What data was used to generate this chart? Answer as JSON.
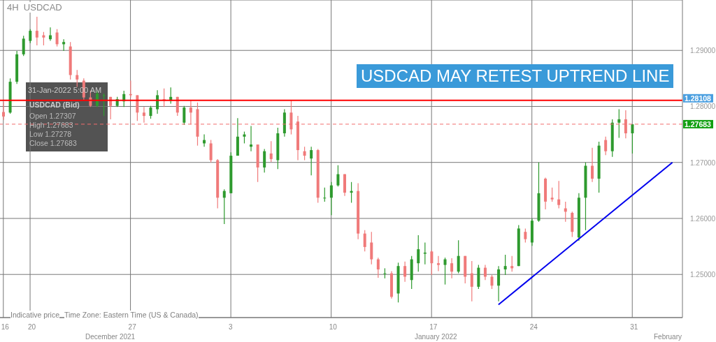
{
  "chart_data": {
    "type": "candlestick",
    "title": "4H  USDCAD",
    "categories": [
      "16",
      null,
      null,
      null,
      "20",
      null,
      null,
      null,
      null,
      null,
      null,
      null,
      null,
      null,
      null,
      null,
      null,
      null,
      null,
      "27",
      null,
      null,
      null,
      null,
      null,
      null,
      null,
      null,
      null,
      null,
      null,
      null,
      null,
      null,
      "3",
      null,
      null,
      null,
      null,
      null,
      null,
      null,
      null,
      null,
      null,
      null,
      null,
      null,
      null,
      "10",
      null,
      null,
      null,
      null,
      null,
      null,
      null,
      null,
      null,
      null,
      null,
      null,
      null,
      null,
      "17",
      null,
      null,
      null,
      null,
      null,
      null,
      null,
      null,
      null,
      null,
      null,
      null,
      null,
      null,
      "24",
      null,
      null,
      null,
      null,
      null,
      null,
      null,
      null,
      null,
      null,
      null,
      null,
      null,
      null,
      "31",
      null,
      null,
      null,
      null,
      null,
      null,
      null
    ],
    "ohlc": [
      [
        1.279,
        1.2808,
        1.2776,
        1.2782
      ],
      [
        1.2789,
        1.285,
        1.2787,
        1.2844
      ],
      [
        1.2844,
        1.2899,
        1.284,
        1.2893
      ],
      [
        1.2893,
        1.2926,
        1.289,
        1.2921
      ],
      [
        1.2917,
        1.2938,
        1.2913,
        1.2935
      ],
      [
        1.2935,
        1.296,
        1.2909,
        1.2923
      ],
      [
        1.2927,
        1.2933,
        1.2909,
        1.2923
      ],
      [
        1.292,
        1.2941,
        1.2917,
        1.2927
      ],
      [
        1.2932,
        1.2938,
        1.2907,
        1.2911
      ],
      [
        1.2911,
        1.292,
        1.2899,
        1.2915
      ],
      [
        1.2907,
        1.2915,
        1.2848,
        1.2856
      ],
      [
        1.2856,
        1.2865,
        1.2835,
        1.2848
      ],
      [
        1.2846,
        1.285,
        1.2811,
        1.2816
      ],
      [
        1.2816,
        1.2828,
        1.2799,
        1.2801
      ],
      [
        1.2801,
        1.2828,
        1.2799,
        1.2823
      ],
      [
        1.282,
        1.2823,
        1.2783,
        1.282
      ],
      [
        1.2817,
        1.2817,
        1.2777,
        1.2801
      ],
      [
        1.2801,
        1.2817,
        1.2799,
        1.2813
      ],
      [
        1.2809,
        1.2828,
        1.2799,
        1.2822
      ],
      [
        1.2822,
        1.2846,
        1.2816,
        1.282
      ],
      [
        1.282,
        1.282,
        1.2774,
        1.2789
      ],
      [
        1.2789,
        1.2799,
        1.2771,
        1.2783
      ],
      [
        1.2783,
        1.2801,
        1.2778,
        1.2798
      ],
      [
        1.2795,
        1.2829,
        1.2787,
        1.282
      ],
      [
        1.2813,
        1.2832,
        1.2799,
        1.281
      ],
      [
        1.281,
        1.2834,
        1.2805,
        1.2817
      ],
      [
        1.2817,
        1.2817,
        1.2783,
        1.2789
      ],
      [
        1.2771,
        1.2801,
        1.2767,
        1.2798
      ],
      [
        1.2798,
        1.2811,
        1.2768,
        1.2789
      ],
      [
        1.2795,
        1.2807,
        1.273,
        1.2746
      ],
      [
        1.2734,
        1.275,
        1.2728,
        1.274
      ],
      [
        1.2734,
        1.274,
        1.27,
        1.2704
      ],
      [
        1.2704,
        1.2706,
        1.2618,
        1.2637
      ],
      [
        1.2637,
        1.2652,
        1.259,
        1.2649
      ],
      [
        1.2645,
        1.2718,
        1.2645,
        1.2712
      ],
      [
        1.2712,
        1.2779,
        1.2712,
        1.2746
      ],
      [
        1.2746,
        1.2755,
        1.2734,
        1.275
      ],
      [
        1.2728,
        1.2765,
        1.272,
        1.2732
      ],
      [
        1.2732,
        1.2732,
        1.2665,
        1.2691
      ],
      [
        1.2691,
        1.2724,
        1.2682,
        1.272
      ],
      [
        1.2716,
        1.2738,
        1.2701,
        1.2706
      ],
      [
        1.2704,
        1.2762,
        1.2688,
        1.2752
      ],
      [
        1.2752,
        1.2795,
        1.2746,
        1.2789
      ],
      [
        1.2789,
        1.2811,
        1.275,
        1.2759
      ],
      [
        1.2773,
        1.2783,
        1.2704,
        1.2722
      ],
      [
        1.272,
        1.2728,
        1.2704,
        1.2712
      ],
      [
        1.2707,
        1.2728,
        1.2677,
        1.2722
      ],
      [
        1.2722,
        1.2724,
        1.2628,
        1.2637
      ],
      [
        1.2637,
        1.2655,
        1.263,
        1.2637
      ],
      [
        1.2637,
        1.2665,
        1.2606,
        1.2659
      ],
      [
        1.2659,
        1.2695,
        1.2657,
        1.2679
      ],
      [
        1.2679,
        1.2679,
        1.264,
        1.2646
      ],
      [
        1.2646,
        1.2665,
        1.2628,
        1.2649
      ],
      [
        1.2649,
        1.2663,
        1.2563,
        1.2573
      ],
      [
        1.2573,
        1.2579,
        1.2541,
        1.2549
      ],
      [
        1.2557,
        1.2576,
        1.2518,
        1.2527
      ],
      [
        1.2527,
        1.253,
        1.2494,
        1.2509
      ],
      [
        1.2502,
        1.2511,
        1.2493,
        1.2502
      ],
      [
        1.2502,
        1.2506,
        1.2457,
        1.246
      ],
      [
        1.2466,
        1.2521,
        1.245,
        1.2515
      ],
      [
        1.2515,
        1.2523,
        1.2487,
        1.2496
      ],
      [
        1.249,
        1.2533,
        1.2474,
        1.2527
      ],
      [
        1.252,
        1.257,
        1.2505,
        1.2545
      ],
      [
        1.2537,
        1.2557,
        1.2518,
        1.2539
      ],
      [
        1.2541,
        1.2543,
        1.2499,
        1.252
      ],
      [
        1.252,
        1.2533,
        1.2506,
        1.2517
      ],
      [
        1.2517,
        1.253,
        1.2482,
        1.2527
      ],
      [
        1.252,
        1.2529,
        1.2493,
        1.2505
      ],
      [
        1.2505,
        1.2561,
        1.2502,
        1.2533
      ],
      [
        1.2533,
        1.2533,
        1.2484,
        1.2496
      ],
      [
        1.2502,
        1.2524,
        1.2452,
        1.2478
      ],
      [
        1.2478,
        1.2517,
        1.2474,
        1.2512
      ],
      [
        1.2512,
        1.2517,
        1.249,
        1.2496
      ],
      [
        1.2496,
        1.2499,
        1.2474,
        1.248
      ],
      [
        1.248,
        1.2515,
        1.2452,
        1.2509
      ],
      [
        1.2509,
        1.2535,
        1.2499,
        1.2515
      ],
      [
        1.2515,
        1.2533,
        1.2505,
        1.2511
      ],
      [
        1.2515,
        1.2588,
        1.2515,
        1.2582
      ],
      [
        1.2576,
        1.2582,
        1.2557,
        1.2563
      ],
      [
        1.2557,
        1.26,
        1.2551,
        1.2596
      ],
      [
        1.2596,
        1.27,
        1.2594,
        1.2645
      ],
      [
        1.2671,
        1.2673,
        1.2616,
        1.263
      ],
      [
        1.2637,
        1.2655,
        1.263,
        1.2634
      ],
      [
        1.2634,
        1.2667,
        1.2618,
        1.2624
      ],
      [
        1.2618,
        1.263,
        1.2594,
        1.2612
      ],
      [
        1.261,
        1.2612,
        1.2567,
        1.2576
      ],
      [
        1.2566,
        1.2645,
        1.256,
        1.2637
      ],
      [
        1.2637,
        1.27,
        1.2579,
        1.2694
      ],
      [
        1.2694,
        1.2726,
        1.2665,
        1.2671
      ],
      [
        1.2671,
        1.2737,
        1.2646,
        1.273
      ],
      [
        1.274,
        1.2746,
        1.2713,
        1.272
      ],
      [
        1.272,
        1.2777,
        1.271,
        1.2771
      ],
      [
        1.2771,
        1.2795,
        1.2744,
        1.2777
      ],
      [
        1.2777,
        1.2793,
        1.2743,
        1.2752
      ],
      [
        1.2752,
        1.2768,
        1.2716,
        1.2768
      ],
      null,
      null,
      null,
      null,
      null,
      null,
      null
    ],
    "series": [
      {
        "type": "line",
        "color": "#0000ee",
        "values": [
          null,
          null,
          null,
          null,
          null,
          null,
          null,
          null,
          null,
          null,
          null,
          null,
          null,
          null,
          null,
          null,
          null,
          null,
          null,
          null,
          null,
          null,
          null,
          null,
          null,
          null,
          null,
          null,
          null,
          null,
          null,
          null,
          null,
          null,
          null,
          null,
          null,
          null,
          null,
          null,
          null,
          null,
          null,
          null,
          null,
          null,
          null,
          null,
          null,
          null,
          null,
          null,
          null,
          null,
          null,
          null,
          null,
          null,
          null,
          null,
          null,
          null,
          null,
          null,
          null,
          null,
          null,
          null,
          null,
          null,
          null,
          null,
          null,
          null,
          1.2446,
          null,
          null,
          null,
          null,
          null,
          null,
          null,
          null,
          null,
          null,
          null,
          null,
          null,
          null,
          null,
          null,
          null,
          null,
          null,
          null,
          null,
          null,
          null,
          null,
          null,
          1.27,
          null
        ]
      }
    ],
    "ylim": [
      1.2423,
      1.299
    ],
    "yticks": [
      {
        "value": 1.25,
        "label": "1.25000"
      },
      {
        "value": 1.26,
        "label": "1.26000"
      },
      {
        "value": 1.27,
        "label": "1.27000"
      },
      {
        "value": 1.28,
        "label": "1.28000"
      },
      {
        "value": 1.29,
        "label": "1.29000"
      }
    ],
    "ref_lines": [
      {
        "axis": "y",
        "value": 1.28108,
        "label": "1.28108",
        "color": "#ff0000",
        "line_style": "solid"
      },
      {
        "axis": "y",
        "value": 1.27683,
        "label": "1.27683",
        "color": "#f26d6d",
        "line_style": "dashed"
      }
    ],
    "grid": true,
    "annotations": [
      "USDCAD MAY RETEST UPTREND LINE",
      "31-Jan-2022 5:00 AM",
      "USDCAD (Bid)",
      "Open 1.27307",
      "High 1.27683",
      "Low 1.27278",
      "Close 1.27683",
      "Indicative price",
      "Time Zone: Eastern Time (US & Canada)",
      "December 2021",
      "January 2022",
      "February"
    ]
  }
}
